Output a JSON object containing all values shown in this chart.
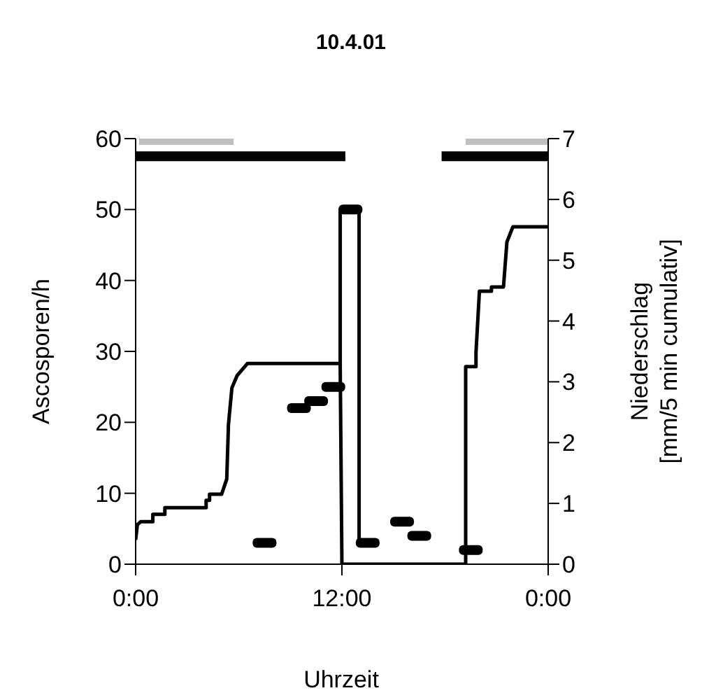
{
  "chart_data": {
    "type": "scatter",
    "title": "10.4.01",
    "xlabel": "Uhrzeit",
    "ylabel": "Ascosporen/h",
    "y2label": "Niederschlag [mm/5 min cumulativ]",
    "xlim": [
      0,
      24
    ],
    "xticks": [
      {
        "value": 0,
        "label": "0:00"
      },
      {
        "value": 12,
        "label": "12:00"
      },
      {
        "value": 24,
        "label": "0:00"
      }
    ],
    "ylim": [
      0,
      60
    ],
    "yticks": [
      0,
      10,
      20,
      30,
      40,
      50,
      60
    ],
    "y2lim": [
      0,
      7
    ],
    "y2ticks": [
      0,
      1,
      2,
      3,
      4,
      5,
      6,
      7
    ],
    "grid": false,
    "legend": false,
    "series": [
      {
        "marker": "square",
        "color": "#000000",
        "x": [
          7.5,
          9.5,
          10.5,
          11.5,
          12.5,
          13.5,
          15.5,
          16.5,
          19.5
        ],
        "values": [
          3,
          22,
          23,
          25,
          50,
          3,
          6,
          4,
          2
        ]
      },
      {
        "type": "line",
        "color": "#000000",
        "line_style": "solid",
        "x": [
          11.9,
          11.9,
          13.0,
          13.0
        ],
        "values": [
          28,
          50,
          50,
          3
        ]
      },
      {
        "type": "line",
        "color": "#000000",
        "line_style": "solid",
        "axis": "y2",
        "x": [
          0,
          0.1,
          0.3,
          1.0,
          1.0,
          1.7,
          1.7,
          4.1,
          4.1,
          4.3,
          4.3,
          5.0,
          5.3,
          5.4,
          5.6,
          5.9,
          6.5,
          11.9,
          12.0,
          19.2,
          19.2,
          19.8,
          19.8,
          20.0,
          20.7,
          20.7,
          21.4,
          21.6,
          21.95,
          24
        ],
        "values": [
          0.4,
          0.65,
          0.7,
          0.7,
          0.82,
          0.82,
          0.93,
          0.93,
          1.05,
          1.05,
          1.15,
          1.15,
          1.4,
          2.3,
          2.9,
          3.1,
          3.3,
          3.3,
          0,
          0,
          3.25,
          3.25,
          3.48,
          4.49,
          4.49,
          4.56,
          4.56,
          5.3,
          5.55,
          5.55
        ]
      },
      {
        "type": "line",
        "color": "#c0c0c0",
        "line_style": "solid",
        "x": [
          0.2,
          5.7,
          12,
          19.2,
          24
        ],
        "values": [
          60,
          60,
          null,
          60,
          60
        ]
      },
      {
        "type": "line",
        "color": "#000000",
        "line_style": "solid",
        "x": [
          0,
          12.2,
          15,
          17.8,
          24
        ],
        "values": [
          57.5,
          57.5,
          null,
          57.5,
          57.5
        ]
      }
    ]
  }
}
